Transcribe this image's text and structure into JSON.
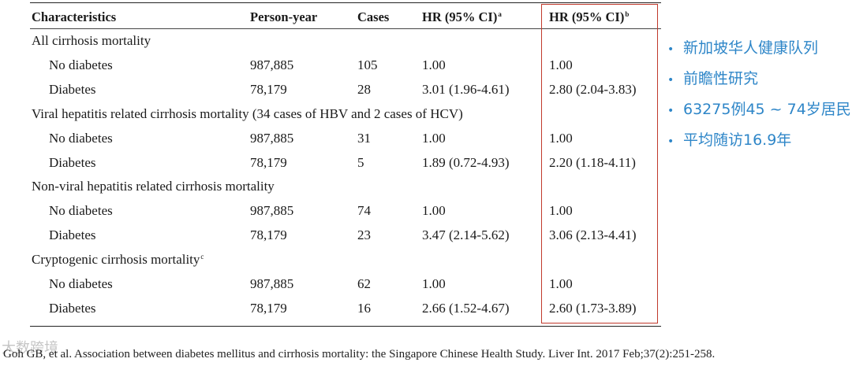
{
  "table": {
    "headers": {
      "characteristics": "Characteristics",
      "person_year": "Person-year",
      "cases": "Cases",
      "hr_a": "HR (95% CI)",
      "hr_a_sup": "a",
      "hr_b": "HR (95% CI)",
      "hr_b_sup": "b"
    },
    "groups": [
      {
        "title": "All cirrhosis mortality",
        "title_sup": "",
        "rows": [
          {
            "label": "No diabetes",
            "person_year": "987,885",
            "cases": "105",
            "hr_a": "1.00",
            "hr_b": "1.00"
          },
          {
            "label": "Diabetes",
            "person_year": "78,179",
            "cases": "28",
            "hr_a": "3.01 (1.96-4.61)",
            "hr_b": "2.80 (2.04-3.83)"
          }
        ]
      },
      {
        "title": "Viral hepatitis related cirrhosis mortality (34 cases of HBV and 2 cases of HCV)",
        "title_sup": "",
        "rows": [
          {
            "label": "No diabetes",
            "person_year": "987,885",
            "cases": "31",
            "hr_a": "1.00",
            "hr_b": "1.00"
          },
          {
            "label": "Diabetes",
            "person_year": "78,179",
            "cases": "5",
            "hr_a": "1.89 (0.72-4.93)",
            "hr_b": "2.20 (1.18-4.11)"
          }
        ]
      },
      {
        "title": "Non-viral hepatitis related cirrhosis mortality",
        "title_sup": "",
        "rows": [
          {
            "label": "No diabetes",
            "person_year": "987,885",
            "cases": "74",
            "hr_a": "1.00",
            "hr_b": "1.00"
          },
          {
            "label": "Diabetes",
            "person_year": "78,179",
            "cases": "23",
            "hr_a": "3.47 (2.14-5.62)",
            "hr_b": "3.06 (2.13-4.41)"
          }
        ]
      },
      {
        "title": "Cryptogenic cirrhosis mortality",
        "title_sup": "c",
        "rows": [
          {
            "label": "No diabetes",
            "person_year": "987,885",
            "cases": "62",
            "hr_a": "1.00",
            "hr_b": "1.00"
          },
          {
            "label": "Diabetes",
            "person_year": "78,179",
            "cases": "16",
            "hr_a": "2.66 (1.52-4.67)",
            "hr_b": "2.60 (1.73-3.89)"
          }
        ]
      }
    ]
  },
  "bullets": [
    "新加坡华人健康队列",
    "前瞻性研究",
    "63275例45 ~ 74岁居民",
    "平均随访16.9年"
  ],
  "bullet_glyph": "•",
  "citation": "Goh GB, et al. Association between diabetes mellitus and cirrhosis mortality: the Singapore Chinese Health Study. Liver Int. 2017 Feb;37(2):251-258.",
  "watermark": "大数跨境",
  "colors": {
    "highlight": "#c0392b",
    "bullet_text": "#2e86c8"
  }
}
